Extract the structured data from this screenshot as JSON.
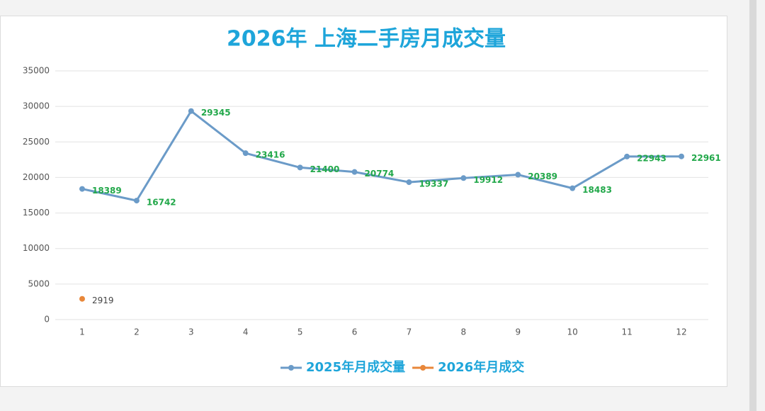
{
  "chart_data": {
    "type": "line",
    "title": "2026年 上海二手房月成交量",
    "categories": [
      "1",
      "2",
      "3",
      "4",
      "5",
      "6",
      "7",
      "8",
      "9",
      "10",
      "11",
      "12"
    ],
    "series": [
      {
        "name": "2025年月成交量",
        "color": "#6b9bc8",
        "label_color": "#22a84a",
        "values": [
          18389,
          16742,
          29345,
          23416,
          21400,
          20774,
          19337,
          19912,
          20389,
          18483,
          22943,
          22961
        ]
      },
      {
        "name": "2026年月成交",
        "color": "#e8873a",
        "label_color": "#444444",
        "values": [
          2919,
          null,
          null,
          null,
          null,
          null,
          null,
          null,
          null,
          null,
          null,
          null
        ]
      }
    ],
    "ylim": [
      0,
      35000
    ],
    "yticks": [
      0,
      5000,
      10000,
      15000,
      20000,
      25000,
      30000,
      35000
    ],
    "grid": true,
    "legend": "bottom"
  }
}
